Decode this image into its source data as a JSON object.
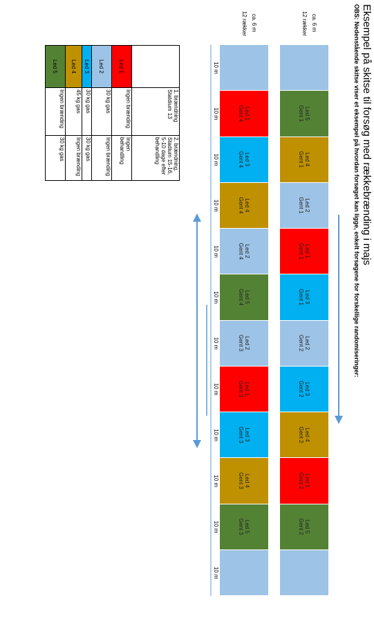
{
  "header": {
    "title": "Eksempel på skitse til forsøg med rækkebrænding i majs",
    "note": "OBS: Nedenstående skitse viser et eksempel på hvordan forsøget kan ligge, enkelt forsøgene for forskellige randomiseringer:"
  },
  "widths": [
    {
      "size": "ca. 6 m",
      "rows": "12 rækker"
    },
    {
      "size": "ca. 6 m",
      "rows": "12 rækker"
    }
  ],
  "plots": [
    [
      {
        "color": "#9dc3e6"
      },
      {
        "label": "Led 5",
        "sub": "Gent 1",
        "color": "#548235"
      },
      {
        "label": "Led 4",
        "sub": "Gent 1",
        "color": "#bf9000"
      },
      {
        "label": "Led 2",
        "sub": "Gent 1",
        "color": "#9dc3e6"
      },
      {
        "label": "Led 1",
        "sub": "Gent 1",
        "color": "#ff0000"
      },
      {
        "label": "Led 3",
        "sub": "Gent 1",
        "color": "#00b0f0"
      },
      {
        "label": "Led 2",
        "sub": "Gent 2",
        "color": "#9dc3e6"
      },
      {
        "label": "Led 3",
        "sub": "Gent 2",
        "color": "#00b0f0"
      },
      {
        "label": "Led 4",
        "sub": "Gent 2",
        "color": "#bf9000"
      },
      {
        "label": "Led 1",
        "sub": "Gent 2",
        "color": "#ff0000"
      },
      {
        "label": "Led 5",
        "sub": "Gent 2",
        "color": "#548235"
      },
      {
        "color": "#9dc3e6"
      }
    ],
    [
      {
        "color": "#9dc3e6"
      },
      {
        "label": "Led 1",
        "sub": "Gent 4",
        "color": "#ff0000"
      },
      {
        "label": "Led 3",
        "sub": "Gent 4",
        "color": "#00b0f0"
      },
      {
        "label": "Led 4",
        "sub": "Gent 4",
        "color": "#bf9000"
      },
      {
        "label": "Led 2",
        "sub": "Gent 4",
        "color": "#9dc3e6"
      },
      {
        "label": "Led 5",
        "sub": "Gent 4",
        "color": "#548235"
      },
      {
        "label": "Led 2",
        "sub": "Gent 3",
        "color": "#9dc3e6"
      },
      {
        "label": "Led 1",
        "sub": "Gent 3",
        "color": "#ff0000"
      },
      {
        "label": "Led 3",
        "sub": "Gent 3",
        "color": "#00b0f0"
      },
      {
        "label": "Led 4",
        "sub": "Gent 3",
        "color": "#bf9000"
      },
      {
        "label": "Led 5",
        "sub": "Gent 3",
        "color": "#548235"
      },
      {
        "color": "#9dc3e6"
      }
    ]
  ],
  "distances": [
    "10 m",
    "10 m",
    "10 m",
    "10 m",
    "10 m",
    "10 m",
    "10 m",
    "10 m",
    "10 m",
    "10 m",
    "10 m",
    "10 m"
  ],
  "table": {
    "header": [
      "1. brændning Statdium 13",
      "2. brændning. Stadium 15-16, 5-10 dage efter behandling"
    ],
    "rows": [
      {
        "led": "Led 1",
        "color": "#ff0000",
        "cells": [
          "Ingen brænding",
          "Ingen behandling"
        ]
      },
      {
        "led": "Led 2",
        "color": "#9dc3e6",
        "cells": [
          "30 kg gas",
          "Ingen brænding"
        ]
      },
      {
        "led": "Led 3",
        "color": "#00b0f0",
        "cells": [
          "30 kg gas",
          "30 kg gas"
        ]
      },
      {
        "led": "Led 4",
        "color": "#bf9000",
        "cells": [
          "45 kg gas",
          "Ingen brænding"
        ]
      },
      {
        "led": "Led 5",
        "color": "#548235",
        "cells": [
          "Ingen brænding",
          "30 kg gas"
        ]
      }
    ]
  }
}
